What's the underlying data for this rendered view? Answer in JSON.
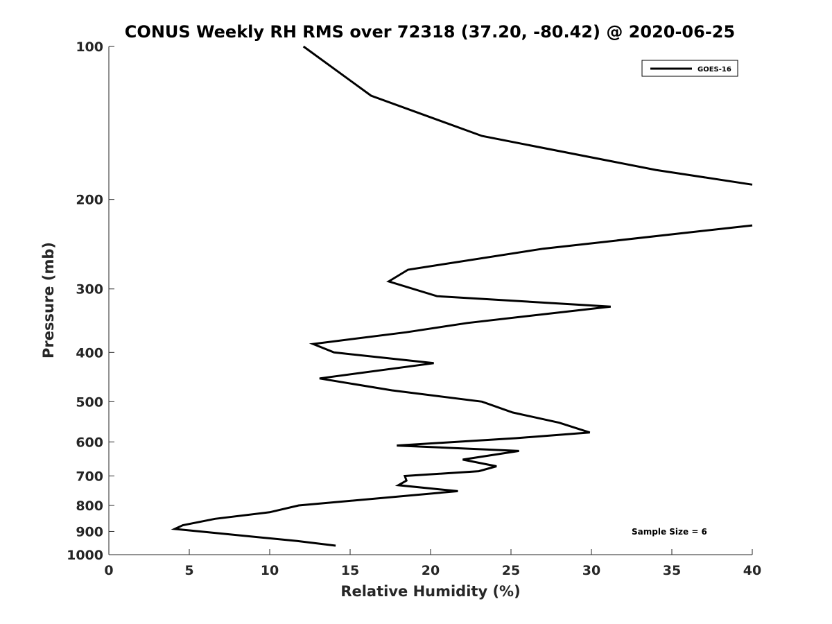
{
  "chart_data": {
    "type": "line",
    "title": "CONUS Weekly RH RMS over 72318 (37.20, -80.42) @ 2020-06-25",
    "xlabel": "Relative Humidity (%)",
    "ylabel": "Pressure (mb)",
    "xlim": [
      0,
      40
    ],
    "ylim": [
      100,
      1000
    ],
    "y_scale": "log",
    "y_reversed": true,
    "x_ticks": [
      0,
      5,
      10,
      15,
      20,
      25,
      30,
      35,
      40
    ],
    "y_ticks": [
      100,
      200,
      300,
      400,
      500,
      600,
      700,
      800,
      900,
      1000
    ],
    "grid": false,
    "legend": {
      "position": "top-right",
      "entries": [
        "GOES-16"
      ]
    },
    "annotation": "Sample Size = 6",
    "series": [
      {
        "name": "GOES-16",
        "color": "#000000",
        "points": [
          [
            12.1,
            100
          ],
          [
            16.3,
            125
          ],
          [
            23.2,
            150
          ],
          [
            34.0,
            175
          ],
          [
            40.0,
            187
          ],
          [
            null,
            null
          ],
          [
            40.0,
            225
          ],
          [
            27.0,
            250
          ],
          [
            18.6,
            275
          ],
          [
            17.4,
            290
          ],
          [
            20.4,
            310
          ],
          [
            31.2,
            325
          ],
          [
            22.3,
            350
          ],
          [
            18.5,
            365
          ],
          [
            12.7,
            385
          ],
          [
            14.0,
            400
          ],
          [
            20.2,
            420
          ],
          [
            13.1,
            450
          ],
          [
            17.6,
            475
          ],
          [
            23.2,
            500
          ],
          [
            25.1,
            525
          ],
          [
            28.0,
            550
          ],
          [
            29.9,
            575
          ],
          [
            25.3,
            590
          ],
          [
            17.9,
            610
          ],
          [
            25.5,
            625
          ],
          [
            22.0,
            650
          ],
          [
            24.1,
            670
          ],
          [
            23.0,
            685
          ],
          [
            18.4,
            700
          ],
          [
            18.5,
            715
          ],
          [
            18.0,
            730
          ],
          [
            21.7,
            750
          ],
          [
            11.8,
            800
          ],
          [
            10.0,
            825
          ],
          [
            6.6,
            850
          ],
          [
            4.6,
            875
          ],
          [
            4.1,
            890
          ],
          [
            11.7,
            940
          ],
          [
            14.1,
            960
          ]
        ]
      }
    ]
  }
}
